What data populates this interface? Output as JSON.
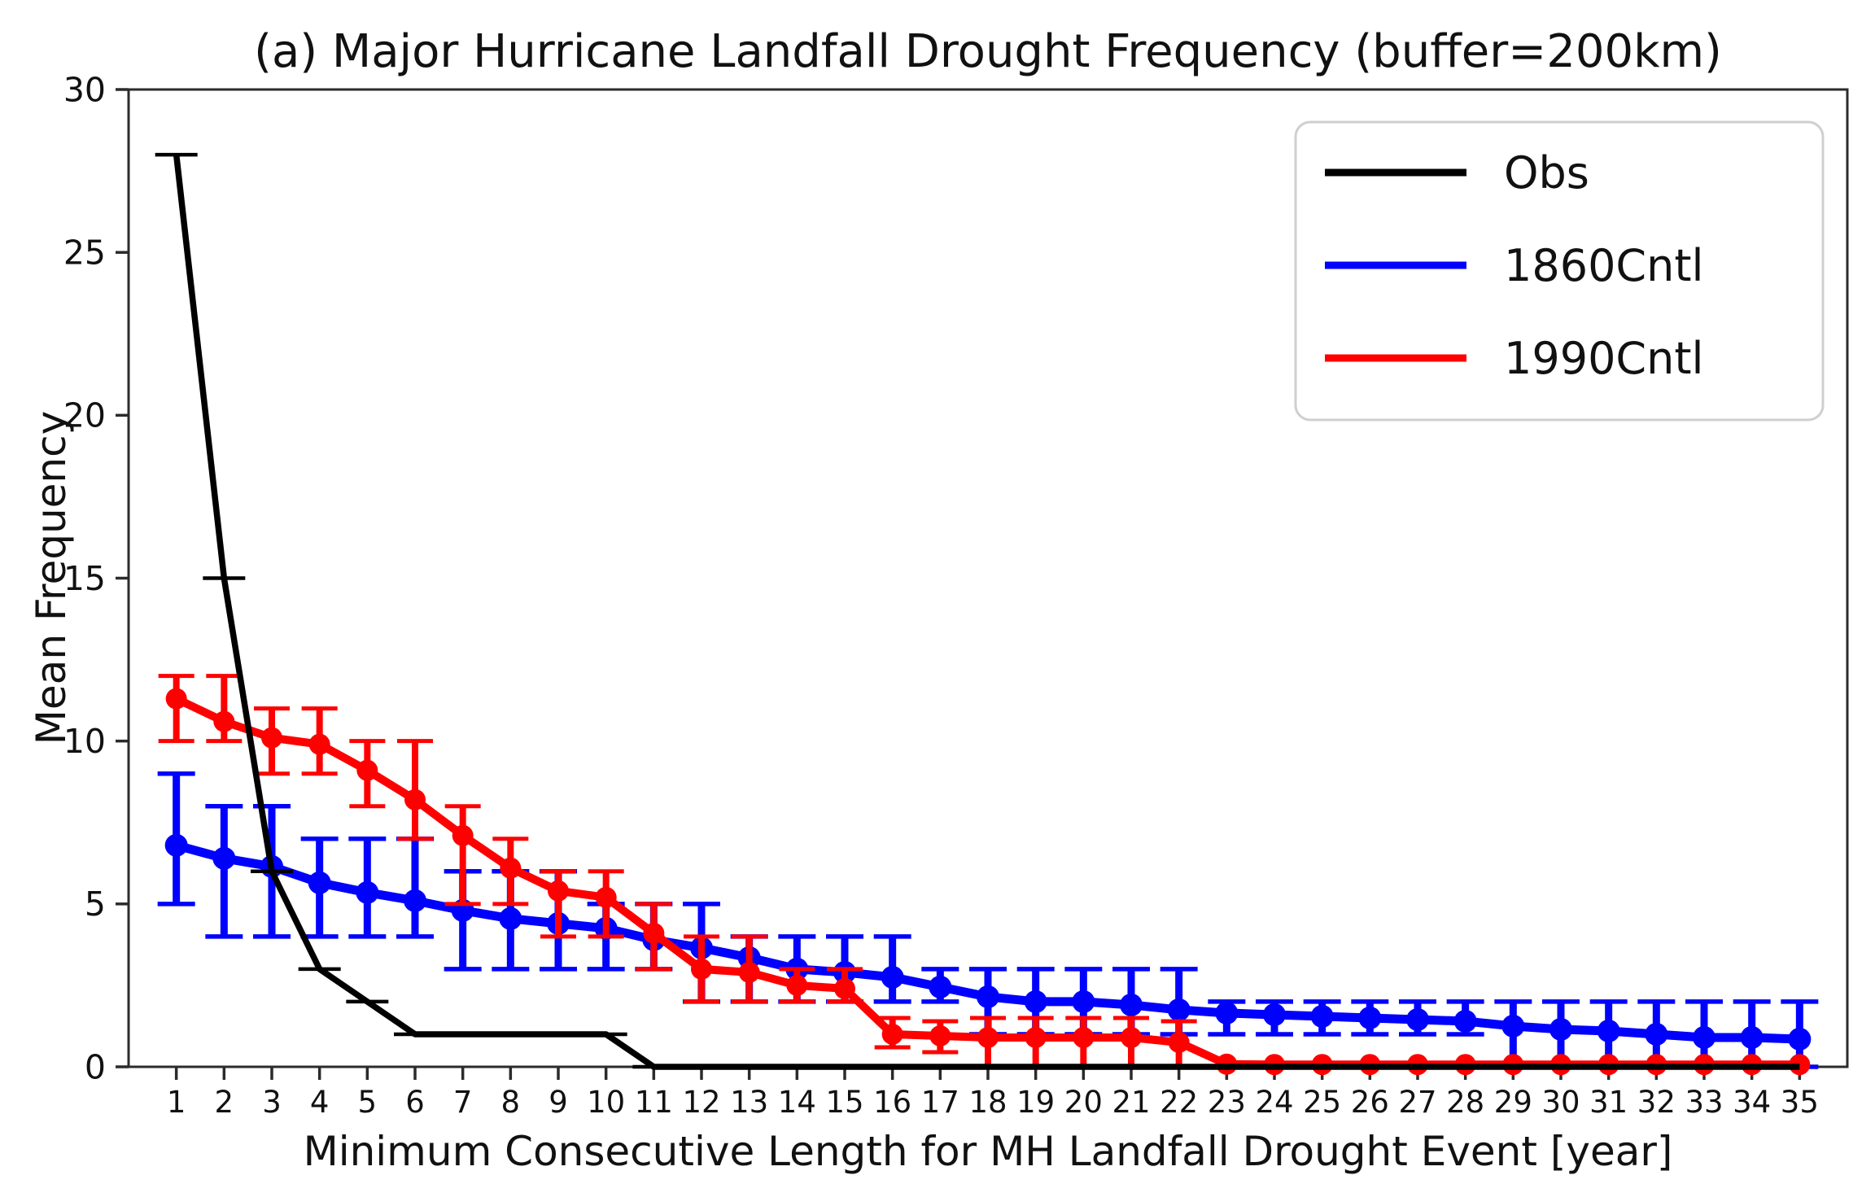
{
  "chart_data": {
    "type": "line",
    "title": "(a) Major Hurricane Landfall Drought Frequency (buffer=200km)",
    "xlabel": "Minimum Consecutive Length for MH Landfall Drought Event [year]",
    "ylabel": "Mean Frequency",
    "x": [
      1,
      2,
      3,
      4,
      5,
      6,
      7,
      8,
      9,
      10,
      11,
      12,
      13,
      14,
      15,
      16,
      17,
      18,
      19,
      20,
      21,
      22,
      23,
      24,
      25,
      26,
      27,
      28,
      29,
      30,
      31,
      32,
      33,
      34,
      35
    ],
    "xlim": [
      0,
      36
    ],
    "ylim": [
      0,
      30
    ],
    "yticks": [
      0,
      5,
      10,
      15,
      20,
      25,
      30
    ],
    "grid": false,
    "legend_position": "upper right",
    "draw_order": [
      1,
      2,
      0
    ],
    "series": [
      {
        "name": "Obs",
        "color": "#000000",
        "line_width": 7.5,
        "marker_radius": 0,
        "err_bar_width": 4,
        "err_cap_halfwidth": 26,
        "err_cap_width": 4.5,
        "values": [
          28,
          15,
          6,
          3,
          2,
          1,
          1,
          1,
          1,
          1,
          0,
          0,
          0,
          0,
          0,
          0,
          0,
          0,
          0,
          0,
          0,
          0,
          0,
          0,
          0,
          0,
          0,
          0,
          0,
          0,
          0,
          0,
          0,
          0,
          0
        ],
        "err_lo": [
          28,
          15,
          6,
          3,
          2,
          1,
          1,
          1,
          1,
          1,
          0,
          null,
          null,
          null,
          null,
          null,
          null,
          null,
          null,
          null,
          null,
          null,
          null,
          null,
          null,
          null,
          null,
          null,
          null,
          null,
          null,
          null,
          null,
          null,
          null
        ],
        "err_hi": [
          28,
          15,
          6,
          3,
          2,
          1,
          1,
          1,
          1,
          1,
          0,
          null,
          null,
          null,
          null,
          null,
          null,
          null,
          null,
          null,
          null,
          null,
          null,
          null,
          null,
          null,
          null,
          null,
          null,
          null,
          null,
          null,
          null,
          null,
          null
        ]
      },
      {
        "name": "1860Cntl",
        "color": "#0000ff",
        "line_width": 11,
        "marker_radius": 14,
        "err_bar_width": 9,
        "err_cap_halfwidth": 23,
        "err_cap_width": 5.5,
        "values": [
          6.8,
          6.4,
          6.15,
          5.65,
          5.35,
          5.1,
          4.8,
          4.55,
          4.4,
          4.25,
          3.9,
          3.65,
          3.35,
          3.0,
          2.9,
          2.75,
          2.45,
          2.15,
          2.0,
          2.0,
          1.9,
          1.75,
          1.65,
          1.6,
          1.55,
          1.5,
          1.45,
          1.4,
          1.25,
          1.15,
          1.1,
          1.0,
          0.9,
          0.9,
          0.85
        ],
        "err_lo": [
          5,
          4,
          4,
          4,
          4,
          4,
          3,
          3,
          3,
          3,
          3,
          2,
          2,
          2,
          2,
          2,
          2,
          1,
          1,
          1,
          1,
          1,
          1,
          1,
          1,
          1,
          1,
          1,
          0,
          0,
          0,
          0,
          0,
          0,
          0
        ],
        "err_hi": [
          9,
          8,
          8,
          7,
          7,
          7,
          6,
          6,
          6,
          5,
          5,
          5,
          4,
          4,
          4,
          4,
          3,
          3,
          3,
          3,
          3,
          3,
          2,
          2,
          2,
          2,
          2,
          2,
          2,
          2,
          2,
          2,
          2,
          2,
          2
        ]
      },
      {
        "name": "1990Cntl",
        "color": "#ff0000",
        "line_width": 10,
        "marker_radius": 13,
        "err_bar_width": 8,
        "err_cap_halfwidth": 22,
        "err_cap_width": 5,
        "values": [
          11.3,
          10.6,
          10.1,
          9.9,
          9.1,
          8.2,
          7.1,
          6.1,
          5.4,
          5.2,
          4.1,
          3.0,
          2.9,
          2.5,
          2.4,
          1.0,
          0.95,
          0.9,
          0.9,
          0.9,
          0.9,
          0.75,
          0.08,
          0.07,
          0.07,
          0.07,
          0.07,
          0.07,
          0.07,
          0.07,
          0.07,
          0.07,
          0.07,
          0.07,
          0.07
        ],
        "err_lo": [
          10,
          10,
          9,
          9,
          8,
          7,
          5,
          5,
          4,
          4,
          3,
          2,
          2,
          2,
          2,
          0.6,
          0.45,
          0,
          0,
          0,
          0,
          0,
          null,
          null,
          null,
          null,
          null,
          null,
          null,
          null,
          null,
          null,
          null,
          null,
          null
        ],
        "err_hi": [
          12,
          12,
          11,
          11,
          10,
          10,
          8,
          7,
          6,
          6,
          5,
          4,
          4,
          3,
          3,
          1.5,
          1.4,
          1.5,
          1.5,
          1.5,
          1.5,
          1.4,
          null,
          null,
          null,
          null,
          null,
          null,
          null,
          null,
          null,
          null,
          null,
          null,
          null
        ]
      }
    ]
  },
  "legend": {
    "items": [
      {
        "label": "Obs",
        "color": "#000000"
      },
      {
        "label": "1860Cntl",
        "color": "#0000ff"
      },
      {
        "label": "1990Cntl",
        "color": "#ff0000"
      }
    ]
  },
  "style": {
    "spine_color": "#2b2b2b",
    "legend_border_color": "#cfcfcf",
    "background": "#ffffff"
  }
}
